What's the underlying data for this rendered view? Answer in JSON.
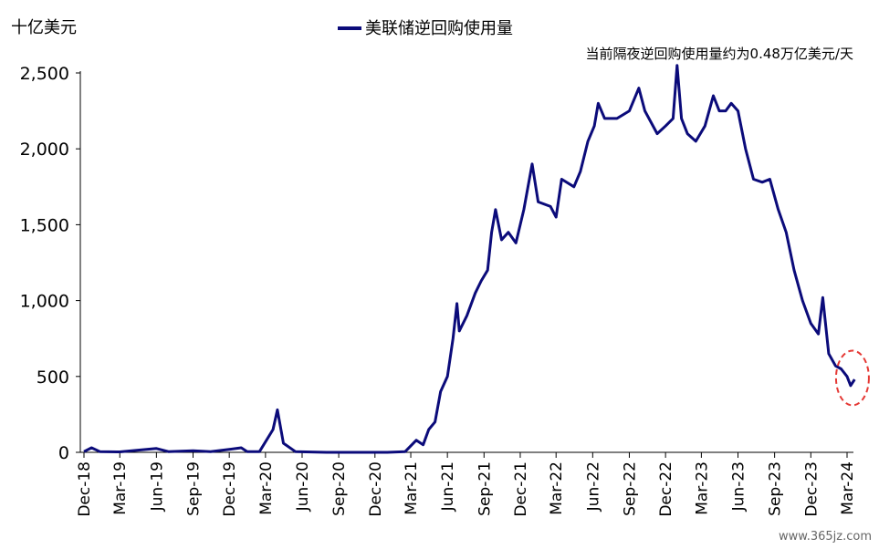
{
  "chart_data": {
    "type": "line",
    "title": "",
    "unit_label": "十亿美元",
    "ylim": [
      0,
      2500
    ],
    "yticks": [
      "0",
      "500",
      "1,000",
      "1,500",
      "2,000",
      "2,500"
    ],
    "ytick_values": [
      0,
      500,
      1000,
      1500,
      2000,
      2500
    ],
    "x_tick_labels": [
      "Dec-18",
      "Mar-19",
      "Jun-19",
      "Sep-19",
      "Dec-19",
      "Mar-20",
      "Jun-20",
      "Sep-20",
      "Dec-20",
      "Mar-21",
      "Jun-21",
      "Sep-21",
      "Dec-21",
      "Mar-22",
      "Jun-22",
      "Sep-22",
      "Dec-22",
      "Mar-23",
      "Jun-23",
      "Sep-23",
      "Dec-23",
      "Mar-24"
    ],
    "grid": false,
    "legend": {
      "position": "top-center"
    },
    "series": [
      {
        "name": "美联储逆回购使用量",
        "color": "#0b0b7a",
        "points": [
          [
            "2018-12-01",
            5
          ],
          [
            "2018-12-20",
            30
          ],
          [
            "2019-01-10",
            5
          ],
          [
            "2019-03-01",
            3
          ],
          [
            "2019-06-01",
            25
          ],
          [
            "2019-07-01",
            5
          ],
          [
            "2019-09-01",
            10
          ],
          [
            "2019-10-15",
            4
          ],
          [
            "2019-12-01",
            20
          ],
          [
            "2019-12-31",
            30
          ],
          [
            "2020-01-15",
            5
          ],
          [
            "2020-02-15",
            5
          ],
          [
            "2020-03-20",
            150
          ],
          [
            "2020-03-31",
            280
          ],
          [
            "2020-04-15",
            60
          ],
          [
            "2020-05-15",
            5
          ],
          [
            "2020-08-01",
            0
          ],
          [
            "2020-11-01",
            0
          ],
          [
            "2021-01-01",
            0
          ],
          [
            "2021-02-15",
            5
          ],
          [
            "2021-03-15",
            80
          ],
          [
            "2021-04-01",
            50
          ],
          [
            "2021-04-15",
            150
          ],
          [
            "2021-05-01",
            200
          ],
          [
            "2021-05-15",
            400
          ],
          [
            "2021-06-01",
            500
          ],
          [
            "2021-06-15",
            750
          ],
          [
            "2021-06-25",
            980
          ],
          [
            "2021-07-01",
            800
          ],
          [
            "2021-07-20",
            900
          ],
          [
            "2021-08-10",
            1050
          ],
          [
            "2021-08-25",
            1130
          ],
          [
            "2021-09-10",
            1200
          ],
          [
            "2021-09-20",
            1450
          ],
          [
            "2021-09-30",
            1600
          ],
          [
            "2021-10-15",
            1400
          ],
          [
            "2021-11-01",
            1450
          ],
          [
            "2021-11-20",
            1380
          ],
          [
            "2021-12-10",
            1600
          ],
          [
            "2021-12-31",
            1900
          ],
          [
            "2022-01-15",
            1650
          ],
          [
            "2022-02-15",
            1620
          ],
          [
            "2022-03-01",
            1550
          ],
          [
            "2022-03-15",
            1800
          ],
          [
            "2022-04-15",
            1750
          ],
          [
            "2022-05-01",
            1850
          ],
          [
            "2022-05-20",
            2050
          ],
          [
            "2022-06-05",
            2150
          ],
          [
            "2022-06-15",
            2300
          ],
          [
            "2022-07-01",
            2200
          ],
          [
            "2022-08-01",
            2200
          ],
          [
            "2022-09-01",
            2250
          ],
          [
            "2022-09-25",
            2400
          ],
          [
            "2022-10-10",
            2250
          ],
          [
            "2022-11-10",
            2100
          ],
          [
            "2022-12-01",
            2150
          ],
          [
            "2022-12-20",
            2200
          ],
          [
            "2022-12-30",
            2550
          ],
          [
            "2023-01-10",
            2200
          ],
          [
            "2023-01-25",
            2100
          ],
          [
            "2023-02-15",
            2050
          ],
          [
            "2023-03-10",
            2150
          ],
          [
            "2023-03-31",
            2350
          ],
          [
            "2023-04-15",
            2250
          ],
          [
            "2023-05-01",
            2250
          ],
          [
            "2023-05-15",
            2300
          ],
          [
            "2023-06-01",
            2250
          ],
          [
            "2023-06-20",
            2000
          ],
          [
            "2023-07-10",
            1800
          ],
          [
            "2023-08-01",
            1780
          ],
          [
            "2023-08-20",
            1800
          ],
          [
            "2023-09-10",
            1600
          ],
          [
            "2023-09-30",
            1450
          ],
          [
            "2023-10-20",
            1200
          ],
          [
            "2023-11-10",
            1000
          ],
          [
            "2023-12-01",
            850
          ],
          [
            "2023-12-20",
            780
          ],
          [
            "2023-12-31",
            1020
          ],
          [
            "2024-01-15",
            650
          ],
          [
            "2024-02-01",
            570
          ],
          [
            "2024-02-15",
            550
          ],
          [
            "2024-03-01",
            500
          ],
          [
            "2024-03-10",
            440
          ],
          [
            "2024-03-20",
            480
          ]
        ]
      }
    ],
    "annotations": [
      {
        "text": "当前隔夜逆回购使用量约为0.48万亿美元/天"
      },
      {
        "shape": "dashed-ellipse",
        "color": "#e53935",
        "x": "2024-03-10",
        "y": 490
      }
    ]
  },
  "watermark": "www.365jz.com"
}
